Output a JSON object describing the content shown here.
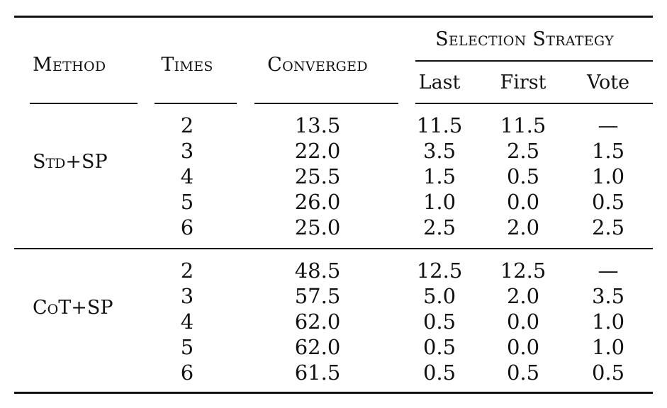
{
  "headers": {
    "method": "Method",
    "times": "Times",
    "converged": "Converged",
    "selection_strategy": "Selection Strategy",
    "sub": [
      "Last",
      "First",
      "Vote"
    ]
  },
  "groups": [
    {
      "method": "Std+SP",
      "rows": [
        {
          "times": "2",
          "converged": "13.5",
          "last": "11.5",
          "first": "11.5",
          "vote": "—"
        },
        {
          "times": "3",
          "converged": "22.0",
          "last": "3.5",
          "first": "2.5",
          "vote": "1.5"
        },
        {
          "times": "4",
          "converged": "25.5",
          "last": "1.5",
          "first": "0.5",
          "vote": "1.0"
        },
        {
          "times": "5",
          "converged": "26.0",
          "last": "1.0",
          "first": "0.0",
          "vote": "0.5"
        },
        {
          "times": "6",
          "converged": "25.0",
          "last": "2.5",
          "first": "2.0",
          "vote": "2.5"
        }
      ]
    },
    {
      "method": "CoT+SP",
      "rows": [
        {
          "times": "2",
          "converged": "48.5",
          "last": "12.5",
          "first": "12.5",
          "vote": "—"
        },
        {
          "times": "3",
          "converged": "57.5",
          "last": "5.0",
          "first": "2.0",
          "vote": "3.5"
        },
        {
          "times": "4",
          "converged": "62.0",
          "last": "0.5",
          "first": "0.0",
          "vote": "1.0"
        },
        {
          "times": "5",
          "converged": "62.0",
          "last": "0.5",
          "first": "0.0",
          "vote": "1.0"
        },
        {
          "times": "6",
          "converged": "61.5",
          "last": "0.5",
          "first": "0.5",
          "vote": "0.5"
        }
      ]
    }
  ]
}
